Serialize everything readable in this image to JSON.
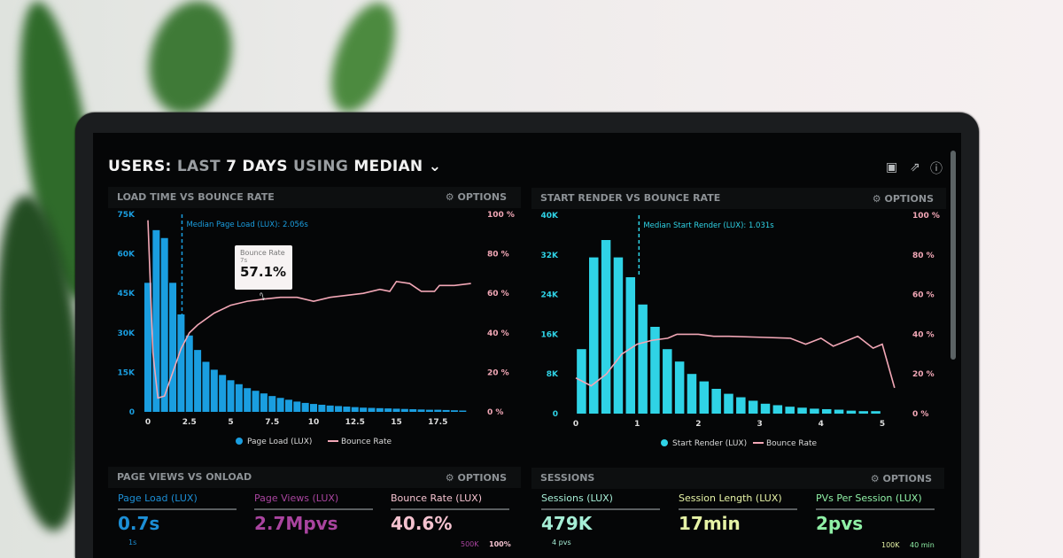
{
  "header": {
    "title_parts": [
      "USERS:",
      "LAST",
      "7 DAYS",
      "USING",
      "MEDIAN"
    ],
    "icons": [
      "monitor-icon",
      "share-icon",
      "help-icon"
    ]
  },
  "colors": {
    "page_load": "#1a9ee0",
    "start_render": "#2fd3e6",
    "bounce": "#f2a7b6"
  },
  "panels": {
    "load": {
      "title": "LOAD TIME VS BOUNCE RATE",
      "options": "OPTIONS"
    },
    "render": {
      "title": "START RENDER VS BOUNCE RATE",
      "options": "OPTIONS"
    },
    "pageviews": {
      "title": "PAGE VIEWS VS ONLOAD",
      "options": "OPTIONS"
    },
    "sessions": {
      "title": "SESSIONS",
      "options": "OPTIONS"
    }
  },
  "chart_data": [
    {
      "type": "bar",
      "title": "LOAD TIME VS BOUNCE RATE",
      "x_ticks": [
        "0",
        "2.5",
        "5",
        "7.5",
        "10",
        "12.5",
        "15",
        "17.5"
      ],
      "xlim": [
        0,
        20
      ],
      "y_ticks": [
        "0",
        "15K",
        "30K",
        "45K",
        "60K",
        "75K"
      ],
      "ylim": [
        0,
        75000
      ],
      "y2_ticks": [
        "0 %",
        "20 %",
        "40 %",
        "60 %",
        "80 %",
        "100 %"
      ],
      "y2lim": [
        0,
        100
      ],
      "legend": [
        "Page Load (LUX)",
        "Bounce Rate"
      ],
      "legend_position": "bottom",
      "annotation": {
        "label": "Median Page Load (LUX): 2.056s",
        "x": 2.056
      },
      "tooltip": {
        "series": "Bounce Rate",
        "x": "7s",
        "value": "57.1%"
      },
      "bars": {
        "name": "Page Load (LUX)",
        "bin_width": 0.5,
        "x_start": 0,
        "values": [
          49000,
          69000,
          66000,
          49000,
          37000,
          29000,
          23500,
          19000,
          16000,
          14000,
          12000,
          10500,
          9000,
          8000,
          7000,
          6000,
          5300,
          4600,
          3900,
          3400,
          3000,
          2700,
          2400,
          2200,
          2000,
          1800,
          1600,
          1500,
          1400,
          1300,
          1200,
          1100,
          1000,
          900,
          800,
          800,
          700,
          600,
          500
        ]
      },
      "line": {
        "name": "Bounce Rate",
        "points": [
          [
            0,
            97
          ],
          [
            0.3,
            30
          ],
          [
            0.6,
            7
          ],
          [
            1,
            8
          ],
          [
            1.5,
            20
          ],
          [
            2,
            32
          ],
          [
            2.5,
            40
          ],
          [
            3,
            44
          ],
          [
            4,
            50
          ],
          [
            5,
            54
          ],
          [
            6,
            56
          ],
          [
            7,
            57.1
          ],
          [
            8,
            58
          ],
          [
            9,
            58
          ],
          [
            10,
            56
          ],
          [
            11,
            58
          ],
          [
            12,
            59
          ],
          [
            13,
            60
          ],
          [
            14,
            62
          ],
          [
            14.6,
            61
          ],
          [
            15,
            66
          ],
          [
            15.8,
            65
          ],
          [
            16.5,
            61
          ],
          [
            17.3,
            61
          ],
          [
            17.6,
            64
          ],
          [
            18.5,
            64
          ],
          [
            19.5,
            65
          ]
        ]
      }
    },
    {
      "type": "bar",
      "title": "START RENDER VS BOUNCE RATE",
      "x_ticks": [
        "0",
        "1",
        "2",
        "3",
        "4",
        "5"
      ],
      "xlim": [
        0,
        5.4
      ],
      "y_ticks": [
        "0",
        "8K",
        "16K",
        "24K",
        "32K",
        "40K"
      ],
      "ylim": [
        0,
        40000
      ],
      "y2_ticks": [
        "0 %",
        "20 %",
        "40 %",
        "60 %",
        "80 %",
        "100 %"
      ],
      "y2lim": [
        0,
        100
      ],
      "legend": [
        "Start Render (LUX)",
        "Bounce Rate"
      ],
      "legend_position": "bottom",
      "annotation": {
        "label": "Median Start Render (LUX): 1.031s",
        "x": 1.031
      },
      "bars": {
        "name": "Start Render (LUX)",
        "bin_width": 0.2,
        "x_start": 0.1,
        "values": [
          13000,
          31500,
          35000,
          31500,
          27500,
          22000,
          17500,
          13000,
          10500,
          8000,
          6500,
          5000,
          4000,
          3300,
          2600,
          2000,
          1700,
          1400,
          1200,
          1000,
          900,
          800,
          600,
          500,
          500
        ]
      },
      "line": {
        "name": "Bounce Rate",
        "points": [
          [
            0,
            18
          ],
          [
            0.25,
            14
          ],
          [
            0.5,
            20
          ],
          [
            0.75,
            30
          ],
          [
            1,
            35
          ],
          [
            1.25,
            37
          ],
          [
            1.5,
            38
          ],
          [
            1.65,
            40
          ],
          [
            2,
            40
          ],
          [
            2.25,
            39
          ],
          [
            2.5,
            39
          ],
          [
            3,
            38.5
          ],
          [
            3.5,
            38
          ],
          [
            3.75,
            35
          ],
          [
            4,
            38
          ],
          [
            4.2,
            34
          ],
          [
            4.6,
            39
          ],
          [
            4.85,
            33
          ],
          [
            5,
            35
          ],
          [
            5.2,
            13
          ]
        ]
      }
    }
  ],
  "stats": [
    {
      "label": "Page Load (LUX)",
      "value": "0.7s",
      "sub": "1s",
      "color": "#1c8fd6"
    },
    {
      "label": "Page Views (LUX)",
      "value": "2.7Mpvs",
      "sub": "",
      "color": "#a9449f"
    },
    {
      "label": "Bounce Rate (LUX)",
      "value": "40.6%",
      "sub": "",
      "color": "#f4c2cf"
    },
    {
      "label": "Sessions (LUX)",
      "value": "479K",
      "sub": "4 pvs",
      "color": "#a6eed6"
    },
    {
      "label": "Session Length (LUX)",
      "value": "17min",
      "sub": "",
      "color": "#e6f3a6"
    },
    {
      "label": "PVs Per Session (LUX)",
      "value": "2pvs",
      "sub": "",
      "color": "#8ff0a6"
    }
  ],
  "stat_scales": {
    "pageviews": [
      "500K",
      "100%"
    ],
    "sessions": [
      "100K",
      "40 min"
    ]
  }
}
